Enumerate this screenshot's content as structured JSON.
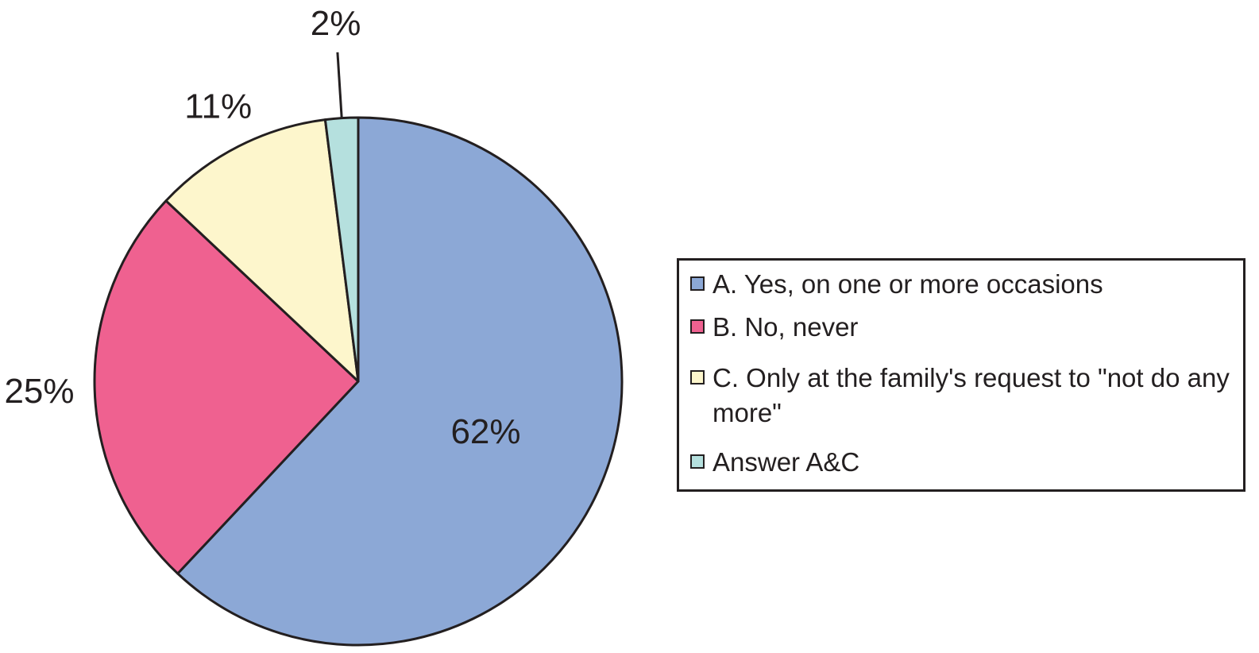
{
  "chart_data": {
    "type": "pie",
    "title": "",
    "slices": [
      {
        "label": "A. Yes, on one or more occasions",
        "value": 62,
        "display": "62%",
        "color": "#8ca8d6"
      },
      {
        "label": "B. No, never",
        "value": 25,
        "display": "25%",
        "color": "#ef6190"
      },
      {
        "label": "C. Only at the family's request to \"not do any more\"",
        "value": 11,
        "display": "11%",
        "color": "#fdf6cc"
      },
      {
        "label": "Answer A&C",
        "value": 2,
        "display": "2%",
        "color": "#b5e0de"
      }
    ],
    "start_angle": "12 o'clock",
    "direction": "clockwise",
    "legend_position": "right",
    "outline_color": "#231f20"
  }
}
